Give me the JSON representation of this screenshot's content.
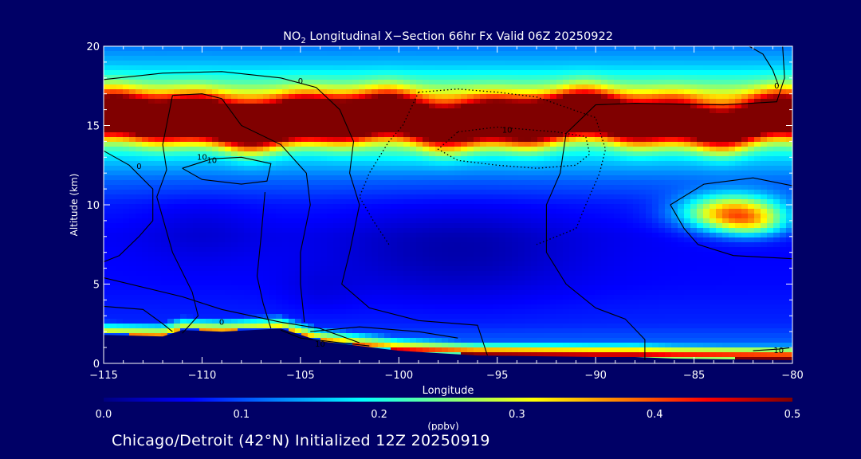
{
  "chart_data": {
    "type": "heatmap",
    "title": {
      "prefix": "NO",
      "subscript": "2",
      "suffix": " Longitudinal X−Section 66hr  Fx Valid 06Z 20250922"
    },
    "xlabel": "Longitude",
    "ylabel": "Altitude (km)",
    "xlim": [
      -115,
      -80
    ],
    "ylim": [
      0,
      20
    ],
    "x_ticks": [
      -115,
      -110,
      -105,
      -100,
      -95,
      -90,
      -85,
      -80
    ],
    "x_tick_labels": [
      "−115",
      "−110",
      "−105",
      "−100",
      "−95",
      "−90",
      "−85",
      "−80"
    ],
    "y_ticks": [
      0,
      5,
      10,
      15,
      20
    ],
    "y_tick_labels": [
      "0",
      "5",
      "10",
      "15",
      "20"
    ],
    "colorbar": {
      "label": "(ppbv)",
      "min": 0.0,
      "max": 0.5,
      "ticks": [
        0.0,
        0.1,
        0.2,
        0.3,
        0.4,
        0.5
      ],
      "tick_labels": [
        "0.0",
        "0.1",
        "0.2",
        "0.3",
        "0.4",
        "0.5"
      ],
      "colors": [
        "#000080",
        "#0000ff",
        "#0080ff",
        "#00ffff",
        "#80ff80",
        "#ffff00",
        "#ff8000",
        "#ff0000",
        "#800000"
      ]
    },
    "terrain": [
      [
        -115,
        1.8
      ],
      [
        -112,
        1.7
      ],
      [
        -111,
        2.1
      ],
      [
        -109,
        2.0
      ],
      [
        -106,
        2.2
      ],
      [
        -104,
        1.4
      ],
      [
        -100,
        0.8
      ],
      [
        -96,
        0.5
      ],
      [
        -90,
        0.4
      ],
      [
        -88,
        0.4
      ],
      [
        -86,
        0.3
      ],
      [
        -80,
        0.2
      ]
    ],
    "features": [
      {
        "lon": [
          -115,
          -80
        ],
        "alt": [
          15.3,
          15.3
        ],
        "sx": 40,
        "sy": 1.3,
        "value": 0.38
      },
      {
        "lon": -107,
        "alt": 15.3,
        "sx": 5,
        "sy": 1.0,
        "value": 0.25
      },
      {
        "lon": -93,
        "alt": 15.6,
        "sx": 4,
        "sy": 0.9,
        "value": 0.22
      },
      {
        "lon": -110,
        "alt": 8.5,
        "sx": 3,
        "sy": 2.2,
        "value": -0.02
      },
      {
        "lon": -104,
        "alt": 4.5,
        "sx": 2,
        "sy": 1.5,
        "value": -0.015
      },
      {
        "lon": -83,
        "alt": 9.5,
        "sx": 2.5,
        "sy": 1.1,
        "value": 0.3
      },
      {
        "lon": -82,
        "alt": 8.7,
        "sx": 1.8,
        "sy": 0.8,
        "value": 0.1
      },
      {
        "lon": -97,
        "alt": 7,
        "sx": 6,
        "sy": 3.0,
        "value": -0.04
      },
      {
        "lon": -100,
        "alt": 13.5,
        "sx": 2.5,
        "sy": 1.2,
        "value": 0.02
      }
    ],
    "contours": [
      {
        "style": "solid",
        "label": "0",
        "label_at": [
          -105,
          17.8
        ],
        "points": [
          [
            -115,
            17.9
          ],
          [
            -112,
            18.3
          ],
          [
            -109,
            18.4
          ],
          [
            -106,
            18.0
          ],
          [
            -104.2,
            17.4
          ],
          [
            -103,
            16.0
          ],
          [
            -102.3,
            14.0
          ],
          [
            -102.5,
            12.0
          ],
          [
            -102,
            10.0
          ],
          [
            -102.5,
            7.0
          ],
          [
            -102.9,
            5.0
          ],
          [
            -101.5,
            3.5
          ],
          [
            -99,
            2.7
          ],
          [
            -96,
            2.4
          ],
          [
            -95.5,
            0.5
          ]
        ]
      },
      {
        "style": "solid",
        "label": "10",
        "label_at": [
          -110,
          13.0
        ],
        "points": [
          [
            -111.5,
            16.9
          ],
          [
            -110,
            17.0
          ],
          [
            -109,
            16.7
          ],
          [
            -108,
            15.0
          ],
          [
            -106,
            13.8
          ],
          [
            -104.7,
            12.0
          ],
          [
            -104.5,
            10.0
          ],
          [
            -105,
            7.0
          ],
          [
            -105,
            5.0
          ],
          [
            -104.8,
            2.6
          ]
        ]
      },
      {
        "style": "solid",
        "label": "10",
        "label_at": [
          -109.5,
          12.8
        ],
        "points": [
          [
            -111,
            12.3
          ],
          [
            -109.5,
            12.9
          ],
          [
            -108,
            13.0
          ],
          [
            -106.5,
            12.6
          ],
          [
            -106.7,
            11.5
          ],
          [
            -108,
            11.3
          ],
          [
            -110,
            11.6
          ],
          [
            -111,
            12.3
          ]
        ]
      },
      {
        "style": "solid",
        "label": "0",
        "label_at": [
          -113.2,
          12.4
        ],
        "points": [
          [
            -115,
            13.4
          ],
          [
            -113.7,
            12.5
          ],
          [
            -112.5,
            11.0
          ],
          [
            -112.5,
            9.0
          ],
          [
            -113.2,
            8.0
          ],
          [
            -114.2,
            6.8
          ],
          [
            -115,
            6.4
          ]
        ]
      },
      {
        "style": "solid",
        "label": "",
        "label_at": null,
        "points": [
          [
            -111.5,
            16.9
          ],
          [
            -112,
            13.8
          ],
          [
            -111.8,
            12.2
          ],
          [
            -112.3,
            10.5
          ],
          [
            -111.5,
            7.0
          ],
          [
            -110.5,
            4.5
          ],
          [
            -110.2,
            3.0
          ],
          [
            -111,
            1.9
          ]
        ]
      },
      {
        "style": "solid",
        "label": "0",
        "label_at": [
          -109,
          2.6
        ],
        "points": [
          [
            -115,
            5.4
          ],
          [
            -111,
            4.2
          ],
          [
            -109,
            3.4
          ],
          [
            -106,
            2.6
          ],
          [
            -104,
            2.2
          ],
          [
            -102,
            1.3
          ]
        ]
      },
      {
        "style": "solid",
        "label": "",
        "label_at": null,
        "points": [
          [
            -115,
            3.6
          ],
          [
            -113,
            3.4
          ],
          [
            -112,
            2.5
          ],
          [
            -111.5,
            2.0
          ]
        ]
      },
      {
        "style": "solid",
        "label": "",
        "label_at": null,
        "points": [
          [
            -106.5,
            2.2
          ],
          [
            -106.9,
            3.8
          ],
          [
            -107.2,
            5.5
          ],
          [
            -107,
            8.0
          ],
          [
            -106.8,
            10.8
          ]
        ]
      },
      {
        "style": "solid",
        "label": "10",
        "label_at": [
          -104,
          1.2
        ],
        "points": [
          [
            -106,
            2.1
          ],
          [
            -105,
            1.6
          ],
          [
            -103,
            1.3
          ],
          [
            -101.5,
            1.1
          ]
        ]
      },
      {
        "style": "solid",
        "label": "",
        "label_at": null,
        "points": [
          [
            -104.5,
            2.0
          ],
          [
            -102,
            2.3
          ],
          [
            -99,
            2.0
          ],
          [
            -97,
            1.6
          ]
        ]
      },
      {
        "style": "solid",
        "label": "",
        "label_at": null,
        "points": [
          [
            -80.5,
            20
          ],
          [
            -80.4,
            18.0
          ],
          [
            -80.8,
            16.5
          ],
          [
            -83.5,
            16.3
          ],
          [
            -88,
            16.4
          ],
          [
            -90,
            16.3
          ],
          [
            -91.5,
            14.5
          ],
          [
            -91.8,
            12.0
          ],
          [
            -92.5,
            10.0
          ],
          [
            -92.5,
            7.0
          ],
          [
            -91.5,
            5.0
          ],
          [
            -90,
            3.5
          ],
          [
            -88.5,
            2.8
          ],
          [
            -87.5,
            1.5
          ],
          [
            -87.5,
            0.2
          ]
        ]
      },
      {
        "style": "solid",
        "label": "",
        "label_at": null,
        "points": [
          [
            -80,
            11.2
          ],
          [
            -82,
            11.7
          ],
          [
            -84.5,
            11.3
          ],
          [
            -86.2,
            10.0
          ],
          [
            -85.5,
            8.5
          ],
          [
            -84.8,
            7.5
          ],
          [
            -83,
            6.8
          ],
          [
            -80,
            6.6
          ]
        ]
      },
      {
        "style": "solid",
        "label": "0",
        "label_at": [
          -80.8,
          17.5
        ],
        "points": [
          [
            -82.2,
            20
          ],
          [
            -81.5,
            19.5
          ],
          [
            -81,
            18.5
          ],
          [
            -80.7,
            17.5
          ]
        ]
      },
      {
        "style": "solid",
        "label": "10",
        "label_at": [
          -80.7,
          0.8
        ],
        "points": [
          [
            -82,
            0.8
          ],
          [
            -80.7,
            0.9
          ],
          [
            -80,
            1.0
          ]
        ]
      },
      {
        "style": "dotted",
        "label": "10",
        "label_at": [
          -94.5,
          14.7
        ],
        "points": [
          [
            -99,
            17.1
          ],
          [
            -97,
            17.3
          ],
          [
            -95,
            17.1
          ],
          [
            -93,
            16.8
          ],
          [
            -90,
            15.5
          ],
          [
            -89.5,
            13.5
          ],
          [
            -89.8,
            12.0
          ],
          [
            -90.5,
            10.0
          ],
          [
            -91,
            8.5
          ],
          [
            -93,
            7.5
          ]
        ]
      },
      {
        "style": "dotted",
        "label": "",
        "label_at": null,
        "points": [
          [
            -99,
            17.1
          ],
          [
            -99.8,
            15.0
          ],
          [
            -100.5,
            14.0
          ],
          [
            -101.5,
            12.0
          ],
          [
            -102,
            10.5
          ],
          [
            -101.3,
            9.0
          ],
          [
            -100.5,
            7.5
          ]
        ]
      },
      {
        "style": "dotted",
        "label": "",
        "label_at": null,
        "points": [
          [
            -97,
            14.6
          ],
          [
            -95,
            14.9
          ],
          [
            -92,
            14.6
          ],
          [
            -90.5,
            14.3
          ],
          [
            -90.3,
            13.2
          ],
          [
            -91,
            12.5
          ],
          [
            -93,
            12.3
          ],
          [
            -95,
            12.5
          ],
          [
            -97,
            12.8
          ],
          [
            -98,
            13.5
          ],
          [
            -97,
            14.6
          ]
        ]
      }
    ]
  },
  "footer": {
    "text": "Chicago/Detroit (42°N) Initialized 12Z 20250919"
  }
}
